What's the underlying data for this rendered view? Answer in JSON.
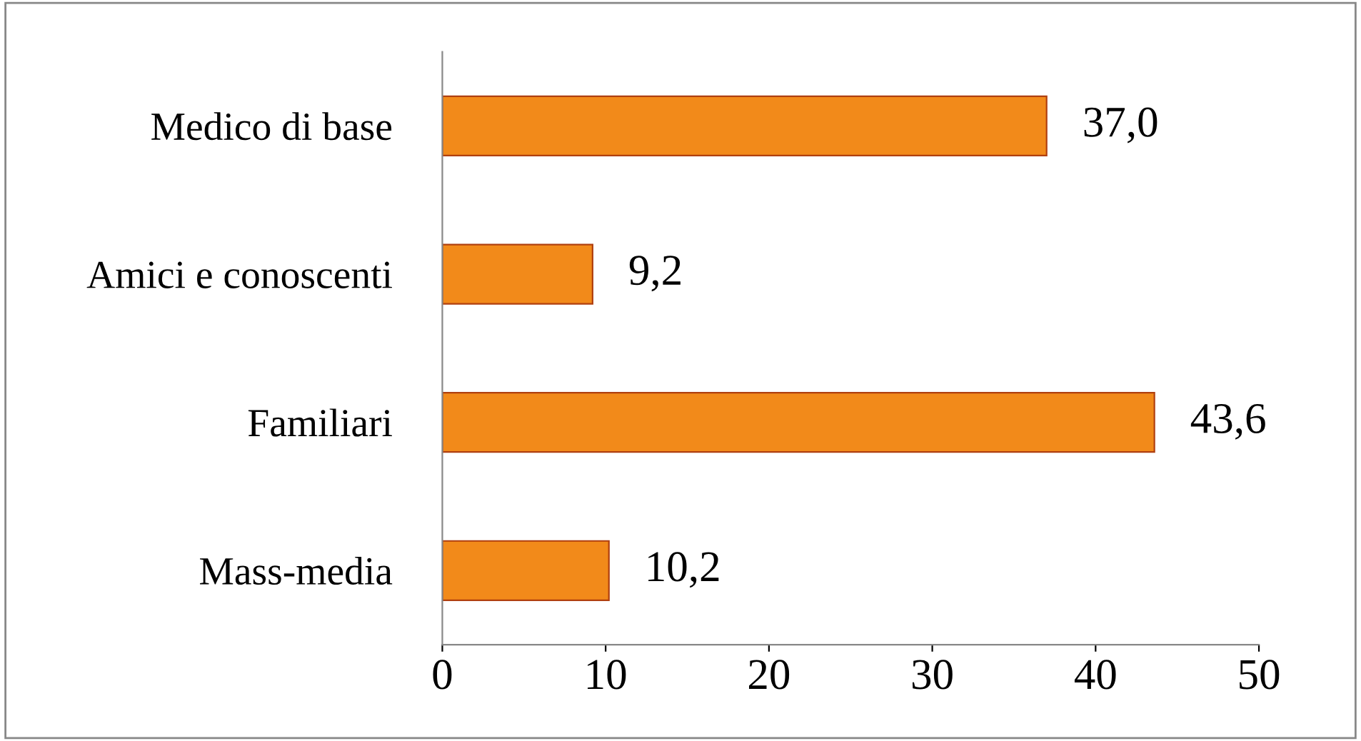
{
  "chart_data": {
    "type": "bar",
    "orientation": "horizontal",
    "categories": [
      "Medico di base",
      "Amici e conoscenti",
      "Familiari",
      "Mass-media"
    ],
    "values": [
      37.0,
      9.2,
      43.6,
      10.2
    ],
    "value_labels": [
      "37,0",
      "9,2",
      "43,6",
      "10,2"
    ],
    "color": "#f28a1a",
    "xlim": [
      0,
      50
    ],
    "xticks": [
      0,
      10,
      20,
      30,
      40,
      50
    ],
    "grid": false,
    "legend": false
  }
}
